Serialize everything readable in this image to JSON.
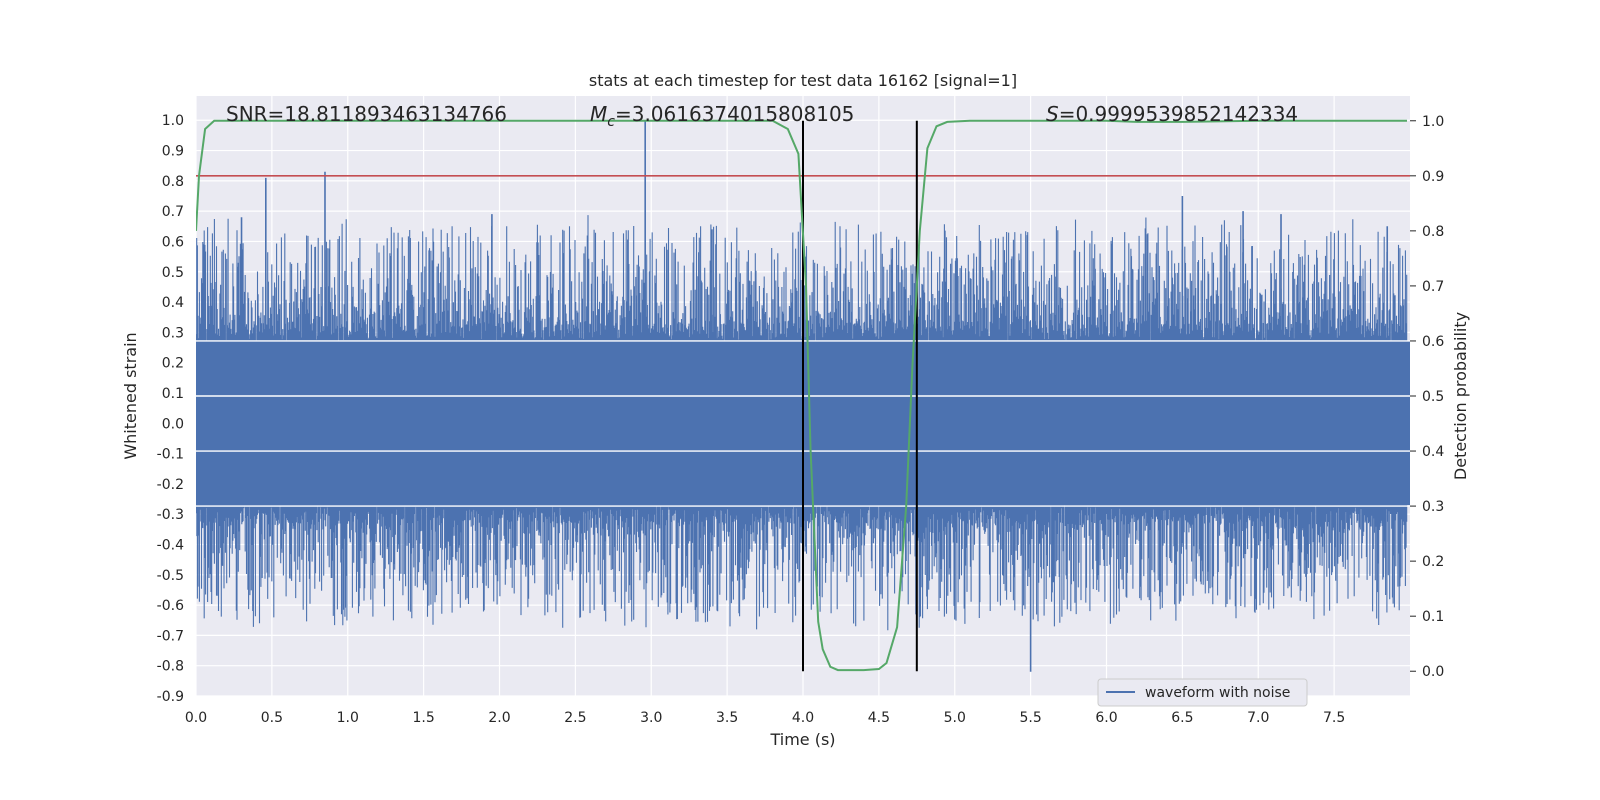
{
  "chart_data": {
    "type": "line",
    "title": "stats at each timestep for test data 16162 [signal=1]",
    "xlabel": "Time (s)",
    "ylabel": "Whitened strain",
    "y2label": "Detection probability",
    "xlim": [
      0.0,
      8.0
    ],
    "ylim": [
      -0.9,
      1.08
    ],
    "y2lim": [
      -0.045,
      1.045
    ],
    "x_ticks": [
      "0.0",
      "0.5",
      "1.0",
      "1.5",
      "2.0",
      "2.5",
      "3.0",
      "3.5",
      "4.0",
      "4.5",
      "5.0",
      "5.5",
      "6.0",
      "6.5",
      "7.0",
      "7.5"
    ],
    "y_ticks": [
      "-0.9",
      "-0.8",
      "-0.7",
      "-0.6",
      "-0.5",
      "-0.4",
      "-0.3",
      "-0.2",
      "-0.1",
      "0.0",
      "0.1",
      "0.2",
      "0.3",
      "0.4",
      "0.5",
      "0.6",
      "0.7",
      "0.8",
      "0.9",
      "1.0"
    ],
    "y2_ticks": [
      "0.0",
      "0.1",
      "0.2",
      "0.3",
      "0.4",
      "0.5",
      "0.6",
      "0.7",
      "0.8",
      "0.9",
      "1.0"
    ],
    "grid": true,
    "legend_position": "lower-right",
    "annotations": {
      "snr": "SNR=18.811893463134766",
      "mc_symbol": "M",
      "mc_sub": "c",
      "mc_value": "=3.0616374015808105",
      "s_symbol": "S",
      "s_value": "=0.9999539852142334"
    },
    "series": [
      {
        "name": "waveform with noise",
        "color": "#4c72b0",
        "axis": "left",
        "kind": "noise",
        "core_band": [
          -0.27,
          0.27
        ],
        "envelope_typical": [
          -0.45,
          0.42
        ],
        "peaks_x": [
          0.46,
          0.85,
          2.96,
          0.3,
          1.95,
          3.4,
          4.02,
          5.5,
          6.5,
          6.9,
          7.15,
          7.85
        ],
        "peaks_y": [
          0.81,
          0.83,
          1.0,
          0.68,
          0.69,
          0.64,
          0.55,
          -0.82,
          0.75,
          0.7,
          0.69,
          0.65
        ]
      },
      {
        "name": "detection probability",
        "color": "#55a868",
        "axis": "right",
        "x": [
          0.0,
          0.02,
          0.06,
          0.12,
          0.2,
          0.5,
          1.0,
          2.0,
          3.0,
          3.5,
          3.8,
          3.9,
          3.97,
          4.02,
          4.05,
          4.1,
          4.13,
          4.18,
          4.23,
          4.3,
          4.4,
          4.5,
          4.55,
          4.62,
          4.68,
          4.72,
          4.77,
          4.82,
          4.88,
          4.95,
          5.1,
          5.5,
          6.0,
          6.2,
          6.5,
          7.0,
          7.5,
          7.98
        ],
        "y": [
          0.8,
          0.9,
          0.985,
          1.0,
          1.0,
          1.0,
          1.0,
          1.0,
          1.0,
          1.0,
          1.0,
          0.985,
          0.94,
          0.7,
          0.4,
          0.09,
          0.04,
          0.008,
          0.002,
          0.002,
          0.002,
          0.004,
          0.015,
          0.08,
          0.3,
          0.55,
          0.8,
          0.95,
          0.99,
          0.998,
          1.0,
          1.0,
          1.0,
          0.998,
          0.998,
          1.0,
          1.0,
          1.0
        ]
      }
    ],
    "threshold": {
      "axis": "right",
      "value": 0.9,
      "color": "#c44e52"
    },
    "markers": {
      "x": [
        4.0,
        4.75
      ],
      "y2_range": [
        0.0,
        1.0
      ],
      "color": "#000000"
    }
  }
}
